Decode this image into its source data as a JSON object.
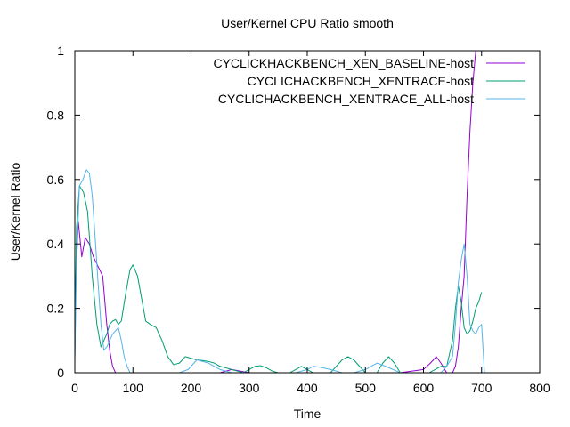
{
  "chart_data": {
    "type": "line",
    "title": "User/Kernel CPU Ratio smooth",
    "xlabel": "Time",
    "ylabel": "User/Kernel Ratio",
    "xlim": [
      0,
      800
    ],
    "ylim": [
      0,
      1
    ],
    "x_ticks": [
      "0",
      "100",
      "200",
      "300",
      "400",
      "500",
      "600",
      "700",
      "800"
    ],
    "y_ticks": [
      "0",
      "0.2",
      "0.4",
      "0.6",
      "0.8",
      "1"
    ],
    "grid": false,
    "legend_position": "top-right",
    "series": [
      {
        "name": "CYCLICKHACKBENCH_XEN_BASELINE-host",
        "color": "#9400d3",
        "x": [
          0,
          2,
          6,
          12,
          18,
          25,
          32,
          40,
          48,
          55,
          60,
          65,
          70,
          75,
          80,
          90,
          100,
          200,
          250,
          270,
          300,
          400,
          560,
          600,
          612,
          622,
          630,
          640,
          650,
          655,
          660,
          665,
          670,
          675,
          680,
          685,
          690,
          695,
          700
        ],
        "y": [
          0.05,
          0.3,
          0.47,
          0.36,
          0.42,
          0.4,
          0.36,
          0.33,
          0.3,
          0.15,
          0.07,
          0.02,
          0.0,
          0.0,
          0.0,
          0.0,
          0.0,
          0.0,
          0.0,
          0.01,
          0.0,
          0.0,
          0.0,
          0.01,
          0.03,
          0.05,
          0.03,
          0.0,
          0.0,
          0.02,
          0.08,
          0.2,
          0.3,
          0.55,
          0.75,
          0.9,
          1.0,
          1.0,
          1.0
        ]
      },
      {
        "name": "CYCLICHACKBENCH_XENTRACE-host",
        "color": "#009e73",
        "x": [
          0,
          3,
          8,
          15,
          22,
          30,
          38,
          45,
          50,
          55,
          60,
          65,
          70,
          75,
          80,
          88,
          95,
          100,
          108,
          115,
          122,
          130,
          140,
          150,
          160,
          170,
          180,
          190,
          200,
          210,
          220,
          230,
          240,
          250,
          260,
          270,
          280,
          290,
          300,
          310,
          320,
          330,
          340,
          350,
          360,
          370,
          380,
          390,
          400,
          410,
          420,
          430,
          440,
          450,
          460,
          470,
          480,
          490,
          500,
          510,
          520,
          530,
          540,
          550,
          560,
          570,
          580,
          590,
          600,
          610,
          620,
          630,
          640,
          650,
          655,
          660,
          665,
          670,
          675,
          680,
          685,
          690,
          695,
          700
        ],
        "y": [
          0.1,
          0.45,
          0.58,
          0.56,
          0.5,
          0.3,
          0.15,
          0.08,
          0.1,
          0.12,
          0.15,
          0.16,
          0.165,
          0.15,
          0.16,
          0.25,
          0.32,
          0.335,
          0.3,
          0.23,
          0.16,
          0.15,
          0.14,
          0.1,
          0.05,
          0.025,
          0.03,
          0.05,
          0.045,
          0.04,
          0.038,
          0.035,
          0.03,
          0.02,
          0.015,
          0.01,
          0.005,
          0.0,
          0.01,
          0.02,
          0.022,
          0.015,
          0.005,
          0.0,
          0.0,
          0.0,
          0.01,
          0.02,
          0.01,
          0.0,
          0.0,
          0.0,
          0.0,
          0.02,
          0.04,
          0.05,
          0.04,
          0.02,
          0.0,
          0.0,
          0.0,
          0.03,
          0.05,
          0.03,
          0.0,
          0.0,
          0.0,
          0.0,
          0.0,
          0.0,
          0.01,
          0.02,
          0.02,
          0.1,
          0.2,
          0.27,
          0.22,
          0.14,
          0.12,
          0.13,
          0.16,
          0.2,
          0.22,
          0.25
        ]
      },
      {
        "name": "CYCLICHACKBENCH_XENTRACE_ALL-host",
        "color": "#56b4e9",
        "x": [
          0,
          3,
          8,
          14,
          20,
          25,
          30,
          35,
          40,
          45,
          50,
          55,
          60,
          65,
          70,
          75,
          80,
          85,
          90,
          95,
          100,
          150,
          180,
          195,
          210,
          230,
          250,
          270,
          290,
          320,
          380,
          400,
          410,
          420,
          440,
          460,
          480,
          500,
          520,
          535,
          560,
          600,
          620,
          630,
          640,
          650,
          655,
          660,
          665,
          670,
          675,
          680,
          685,
          690,
          695,
          700,
          705
        ],
        "y": [
          0.03,
          0.35,
          0.58,
          0.6,
          0.63,
          0.62,
          0.55,
          0.42,
          0.28,
          0.15,
          0.07,
          0.08,
          0.1,
          0.12,
          0.13,
          0.14,
          0.1,
          0.05,
          0.02,
          0.0,
          0.0,
          0.0,
          0.0,
          0.01,
          0.04,
          0.03,
          0.01,
          0.0,
          0.0,
          0.0,
          0.0,
          0.01,
          0.02,
          0.018,
          0.01,
          0.0,
          0.0,
          0.01,
          0.03,
          0.02,
          0.0,
          0.0,
          0.0,
          0.0,
          0.02,
          0.05,
          0.15,
          0.28,
          0.35,
          0.4,
          0.3,
          0.15,
          0.13,
          0.12,
          0.14,
          0.15,
          0.0
        ]
      }
    ]
  }
}
